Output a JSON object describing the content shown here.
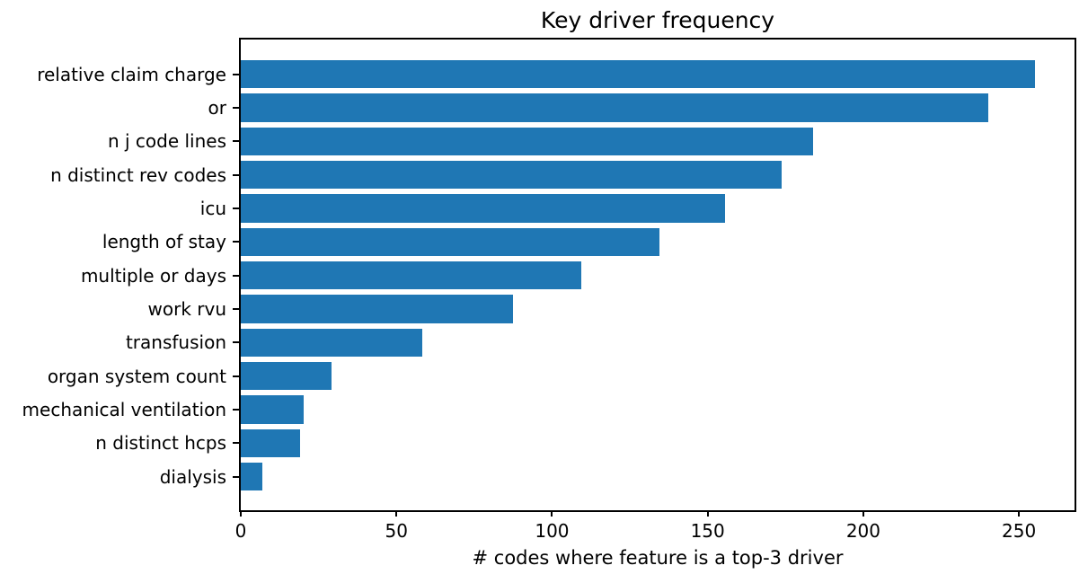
{
  "chart_data": {
    "type": "bar",
    "orientation": "horizontal",
    "title": "Key driver frequency",
    "xlabel": "# codes where feature is a top-3 driver",
    "ylabel": "",
    "categories": [
      "relative claim charge",
      "or",
      "n j code lines",
      "n distinct rev codes",
      "icu",
      "length of stay",
      "multiple or days",
      "work rvu",
      "transfusion",
      "organ system count",
      "mechanical ventilation",
      "n distinct hcps",
      "dialysis"
    ],
    "values": [
      254,
      239,
      183,
      173,
      155,
      134,
      109,
      87,
      58,
      29,
      20,
      19,
      7
    ],
    "xticks": [
      0,
      50,
      100,
      150,
      200,
      250
    ],
    "xlim": [
      0,
      266.7
    ],
    "bar_color": "#1f77b4",
    "spine_color": "#000000",
    "grid": false,
    "legend": "none"
  }
}
